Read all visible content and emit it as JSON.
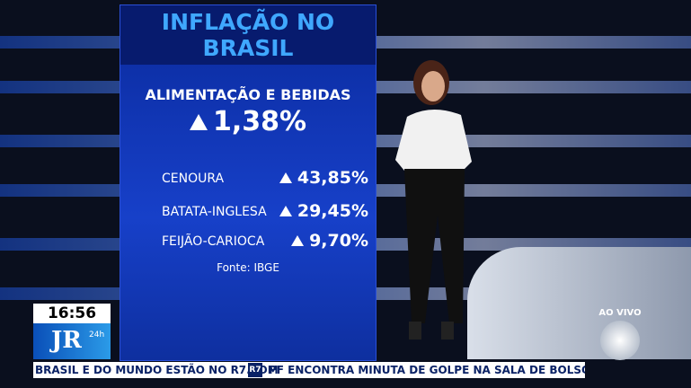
{
  "panel": {
    "title": "INFLAÇÃO NO BRASIL",
    "headline": {
      "label": "ALIMENTAÇÃO E BEBIDAS",
      "value": "1,38%"
    },
    "items": [
      {
        "label": "CENOURA",
        "value": "43,85%"
      },
      {
        "label": "BATATA-INGLESA",
        "value": "29,45%"
      },
      {
        "label": "FEIJÃO-CARIOCA",
        "value": "9,70%"
      }
    ],
    "source": "Fonte: IBGE"
  },
  "overlay": {
    "clock": "16:56",
    "logo": "JR",
    "logo_sub": "24h",
    "live": "AO VIVO"
  },
  "ticker": {
    "left": "BRASIL E DO MUNDO ESTÃO NO R7.COM",
    "badge": "R7",
    "right": "PF ENCONTRA MINUTA DE GOLPE NA SALA DE BOLSONARO NO"
  }
}
